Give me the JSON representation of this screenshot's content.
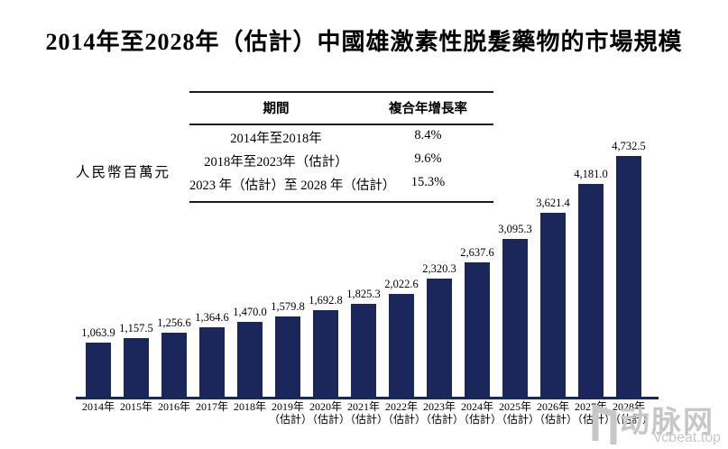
{
  "title": "2014年至2028年（估計）中國雄激素性脱髮藥物的市場規模",
  "cagr_table": {
    "headers": [
      "期間",
      "複合年增長率"
    ],
    "rows": [
      [
        "2014年至2018年",
        "8.4%"
      ],
      [
        "2018年至2023年（估計）",
        "9.6%"
      ],
      [
        "2023 年（估計）至 2028 年（估計）",
        "15.3%"
      ]
    ]
  },
  "y_axis_label": "人民幣百萬元",
  "chart_data": {
    "type": "bar",
    "title": "2014年至2028年（估計）中國雄激素性脱髮藥物的市場規模",
    "xlabel": "",
    "ylabel": "人民幣百萬元",
    "unit": "人民幣百萬元",
    "categories": [
      "2014年",
      "2015年",
      "2016年",
      "2017年",
      "2018年",
      "2019年",
      "2020年",
      "2021年",
      "2022年",
      "2023年",
      "2024年",
      "2025年",
      "2026年",
      "2027年",
      "2028年"
    ],
    "category_notes": [
      "",
      "",
      "",
      "",
      "",
      "（估計）",
      "（估計）",
      "（估計）",
      "（估計）",
      "（估計）",
      "（估計）",
      "（估計）",
      "（估計）",
      "（估計）",
      "（估計）"
    ],
    "values": [
      1063.9,
      1157.5,
      1256.6,
      1364.6,
      1470.0,
      1579.8,
      1692.8,
      1825.3,
      2022.6,
      2320.3,
      2637.6,
      3095.3,
      3621.4,
      4181.0,
      4732.5
    ],
    "value_labels": [
      "1,063.9",
      "1,157.5",
      "1,256.6",
      "1,364.6",
      "1,470.0",
      "1,579.8",
      "1,692.8",
      "1,825.3",
      "2,022.6",
      "2,320.3",
      "2,637.6",
      "3,095.3",
      "3,621.4",
      "4,181.0",
      "4,732.5"
    ],
    "ylim": [
      0,
      4732.5
    ],
    "grid": false,
    "legend": false,
    "bar_color": "#1b265a",
    "axis_color": "#1b265a"
  },
  "watermark": {
    "logo_text": "动脉网",
    "url_text": "vcbeat.top",
    "color": "#c7c7c7"
  }
}
